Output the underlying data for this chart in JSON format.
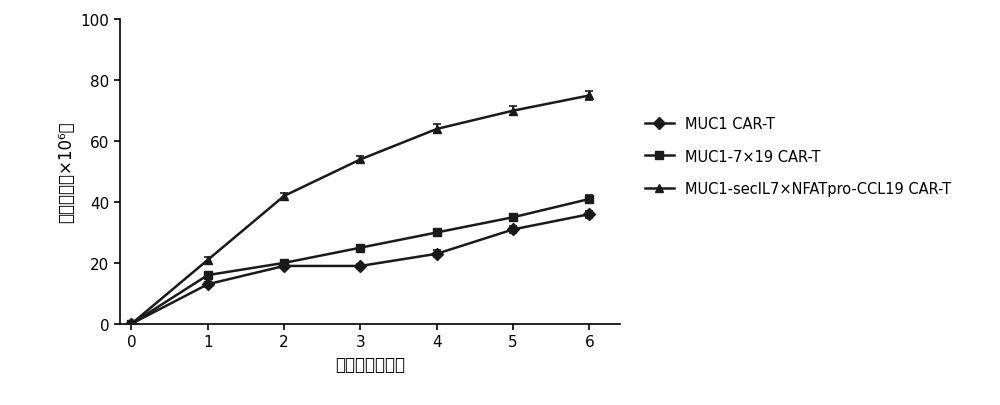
{
  "x": [
    0,
    1,
    2,
    3,
    4,
    5,
    6
  ],
  "series": [
    {
      "label": "MUC1 CAR-T",
      "values": [
        0,
        13,
        19,
        19,
        23,
        31,
        36
      ],
      "errors": [
        0,
        0.8,
        0.8,
        0.8,
        1.2,
        1.2,
        1.2
      ],
      "marker": "D",
      "color": "#1a1a1a"
    },
    {
      "label": "MUC1-7×19 CAR-T",
      "values": [
        0,
        16,
        20,
        25,
        30,
        35,
        41
      ],
      "errors": [
        0,
        0.8,
        0.8,
        1.0,
        1.2,
        1.2,
        1.2
      ],
      "marker": "s",
      "color": "#1a1a1a"
    },
    {
      "label": "MUC1-secIL7×NFATpro-CCL19 CAR-T",
      "values": [
        0,
        21,
        42,
        54,
        64,
        70,
        75
      ],
      "errors": [
        0,
        0.8,
        1.0,
        1.2,
        1.5,
        1.5,
        1.5
      ],
      "marker": "^",
      "color": "#1a1a1a"
    }
  ],
  "xlabel": "培养时间（天）",
  "ylabel": "细胞数量（×10⁶）",
  "xlim": [
    -0.15,
    6.4
  ],
  "ylim": [
    0,
    100
  ],
  "yticks": [
    0,
    20,
    40,
    60,
    80,
    100
  ],
  "xticks": [
    0,
    1,
    2,
    3,
    4,
    5,
    6
  ],
  "background_color": "#ffffff",
  "linewidth": 1.8,
  "markersize": 6,
  "legend_fontsize": 10.5,
  "axis_fontsize": 12,
  "tick_fontsize": 11
}
